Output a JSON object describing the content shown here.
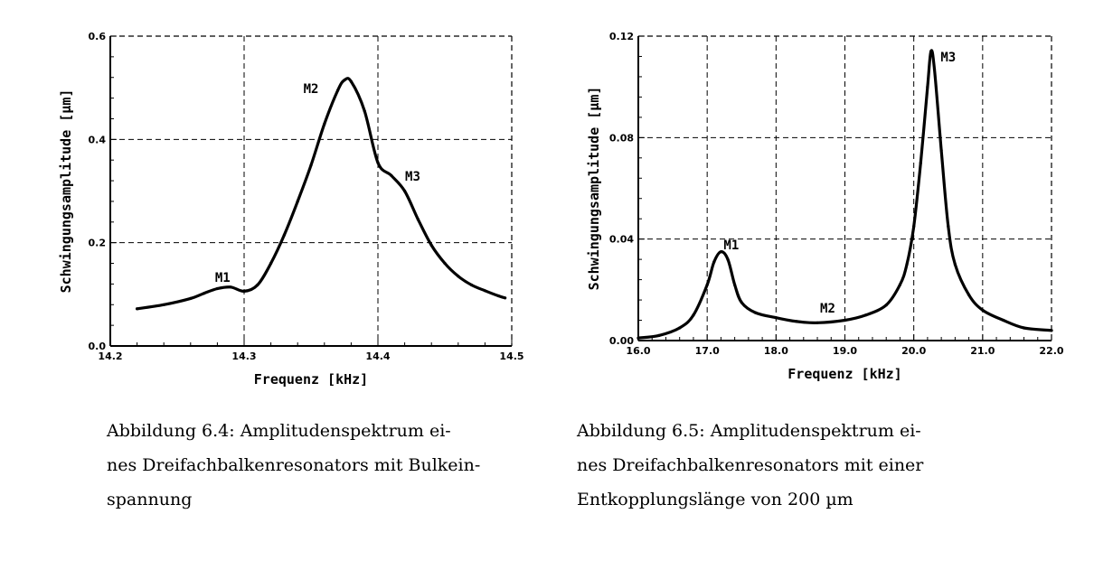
{
  "chart_data": [
    {
      "type": "line",
      "xlabel": "Frequenz [kHz]",
      "ylabel": "Schwingungsamplitude [µm]",
      "xlim": [
        14.2,
        14.5
      ],
      "ylim": [
        0.0,
        0.6
      ],
      "xticks": [
        14.2,
        14.3,
        14.4,
        14.5
      ],
      "xtick_labels": [
        "14.2",
        "14.3",
        "14.4",
        "14.5"
      ],
      "yticks": [
        0.0,
        0.2,
        0.4,
        0.6
      ],
      "ytick_labels": [
        "0.0",
        "0.2",
        "0.4",
        "0.6"
      ],
      "grid": true,
      "x": [
        14.22,
        14.24,
        14.26,
        14.27,
        14.28,
        14.29,
        14.3,
        14.31,
        14.32,
        14.33,
        14.34,
        14.35,
        14.36,
        14.37,
        14.375,
        14.38,
        14.39,
        14.4,
        14.41,
        14.42,
        14.43,
        14.44,
        14.45,
        14.46,
        14.47,
        14.48,
        14.49,
        14.495
      ],
      "y": [
        0.072,
        0.08,
        0.092,
        0.102,
        0.111,
        0.114,
        0.106,
        0.118,
        0.16,
        0.215,
        0.28,
        0.35,
        0.43,
        0.495,
        0.515,
        0.512,
        0.455,
        0.355,
        0.33,
        0.3,
        0.245,
        0.195,
        0.16,
        0.135,
        0.118,
        0.107,
        0.097,
        0.093
      ],
      "annotations": [
        {
          "text": "M1",
          "x": 14.284,
          "y": 0.124
        },
        {
          "text": "M2",
          "x": 14.35,
          "y": 0.49
        },
        {
          "text": "M3",
          "x": 14.426,
          "y": 0.32
        }
      ]
    },
    {
      "type": "line",
      "xlabel": "Frequenz [kHz]",
      "ylabel": "Schwingungsamplitude [µm]",
      "xlim": [
        16.0,
        22.0
      ],
      "ylim": [
        0.0,
        0.12
      ],
      "xticks": [
        16.0,
        17.0,
        18.0,
        19.0,
        20.0,
        21.0,
        22.0
      ],
      "xtick_labels": [
        "16.0",
        "17.0",
        "18.0",
        "19.0",
        "20.0",
        "21.0",
        "22.0"
      ],
      "yticks": [
        0.0,
        0.04,
        0.08,
        0.12
      ],
      "ytick_labels": [
        "0.00",
        "0.04",
        "0.08",
        "0.12"
      ],
      "grid": true,
      "x": [
        16.0,
        16.3,
        16.6,
        16.8,
        17.0,
        17.1,
        17.2,
        17.3,
        17.4,
        17.5,
        17.7,
        18.0,
        18.3,
        18.6,
        19.0,
        19.3,
        19.6,
        19.8,
        19.9,
        20.0,
        20.1,
        20.2,
        20.25,
        20.3,
        20.4,
        20.5,
        20.6,
        20.8,
        21.0,
        21.3,
        21.6,
        22.0
      ],
      "y": [
        0.001,
        0.002,
        0.005,
        0.01,
        0.022,
        0.031,
        0.035,
        0.032,
        0.022,
        0.015,
        0.011,
        0.009,
        0.0075,
        0.007,
        0.008,
        0.01,
        0.014,
        0.022,
        0.03,
        0.045,
        0.07,
        0.1,
        0.114,
        0.107,
        0.075,
        0.045,
        0.03,
        0.018,
        0.012,
        0.008,
        0.005,
        0.004
      ],
      "annotations": [
        {
          "text": "M1",
          "x": 17.35,
          "y": 0.036
        },
        {
          "text": "M2",
          "x": 18.75,
          "y": 0.011
        },
        {
          "text": "M3",
          "x": 20.5,
          "y": 0.11
        }
      ]
    }
  ],
  "captions": {
    "left": [
      "Abbildung 6.4: Amplitudenspektrum ei-",
      "nes Dreifachbalkenresonators mit Bulkein-",
      "spannung"
    ],
    "right": [
      "Abbildung 6.5: Amplitudenspektrum ei-",
      "nes Dreifachbalkenresonators mit einer",
      "Entkopplungslänge von 200 µm"
    ]
  }
}
